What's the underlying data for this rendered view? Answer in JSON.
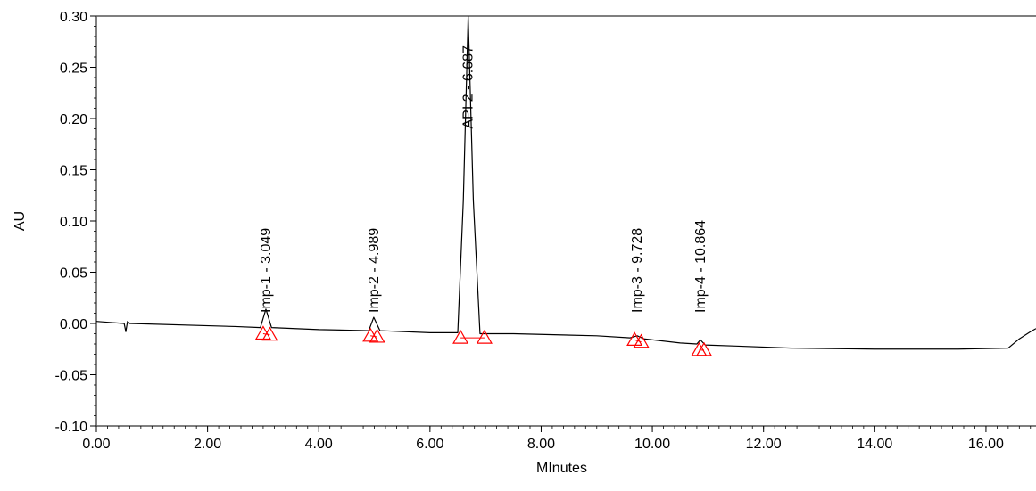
{
  "chart_data": {
    "type": "line",
    "title": "",
    "xlabel": "MInutes",
    "ylabel": "AU",
    "xlim": [
      0,
      16.9
    ],
    "ylim": [
      -0.1,
      0.3
    ],
    "x_ticks": [
      "0.00",
      "2.00",
      "4.00",
      "6.00",
      "8.00",
      "10.00",
      "12.00",
      "14.00",
      "16.00"
    ],
    "y_ticks": [
      "-0.10",
      "-0.05",
      "0.00",
      "0.05",
      "0.10",
      "0.15",
      "0.20",
      "0.25",
      "0.30"
    ],
    "grid": false,
    "series": [
      {
        "x": [
          0,
          0.5,
          0.53,
          0.56,
          0.6,
          2.5,
          2.95,
          3.049,
          3.15,
          4.0,
          4.9,
          4.989,
          5.1,
          6.0,
          6.5,
          6.6,
          6.687,
          6.78,
          6.9,
          7.5,
          9.0,
          9.6,
          9.728,
          9.85,
          10.5,
          10.8,
          10.864,
          10.95,
          11.5,
          12.5,
          14.0,
          15.5,
          16.4,
          16.6,
          16.8,
          16.9
        ],
        "y": [
          0.002,
          0.0,
          -0.008,
          0.002,
          0.0,
          -0.003,
          -0.004,
          0.014,
          -0.004,
          -0.006,
          -0.007,
          0.006,
          -0.007,
          -0.009,
          -0.009,
          0.12,
          0.3,
          0.12,
          -0.01,
          -0.01,
          -0.012,
          -0.014,
          -0.012,
          -0.015,
          -0.019,
          -0.02,
          -0.016,
          -0.021,
          -0.022,
          -0.024,
          -0.025,
          -0.025,
          -0.024,
          -0.015,
          -0.008,
          -0.005
        ],
        "color": "#000000"
      }
    ],
    "peaks": [
      {
        "label": "Imp-1 - 3.049",
        "rt": 3.049,
        "start": 3.0,
        "end": 3.12,
        "base_start": -0.01,
        "base_end": -0.011
      },
      {
        "label": "Imp-2 - 4.989",
        "rt": 4.989,
        "start": 4.93,
        "end": 5.05,
        "base_start": -0.012,
        "base_end": -0.013
      },
      {
        "label": "API 2 - 6.687",
        "rt": 6.687,
        "start": 6.55,
        "end": 6.98,
        "base_start": -0.014,
        "base_end": -0.014
      },
      {
        "label": "Imp-3 - 9.728",
        "rt": 9.728,
        "start": 9.68,
        "end": 9.8,
        "base_start": -0.016,
        "base_end": -0.018
      },
      {
        "label": "Imp-4 - 10.864",
        "rt": 10.864,
        "start": 10.84,
        "end": 10.93,
        "base_start": -0.026,
        "base_end": -0.026
      }
    ],
    "integration_color": "#ff0000",
    "line_color": "#000000"
  }
}
